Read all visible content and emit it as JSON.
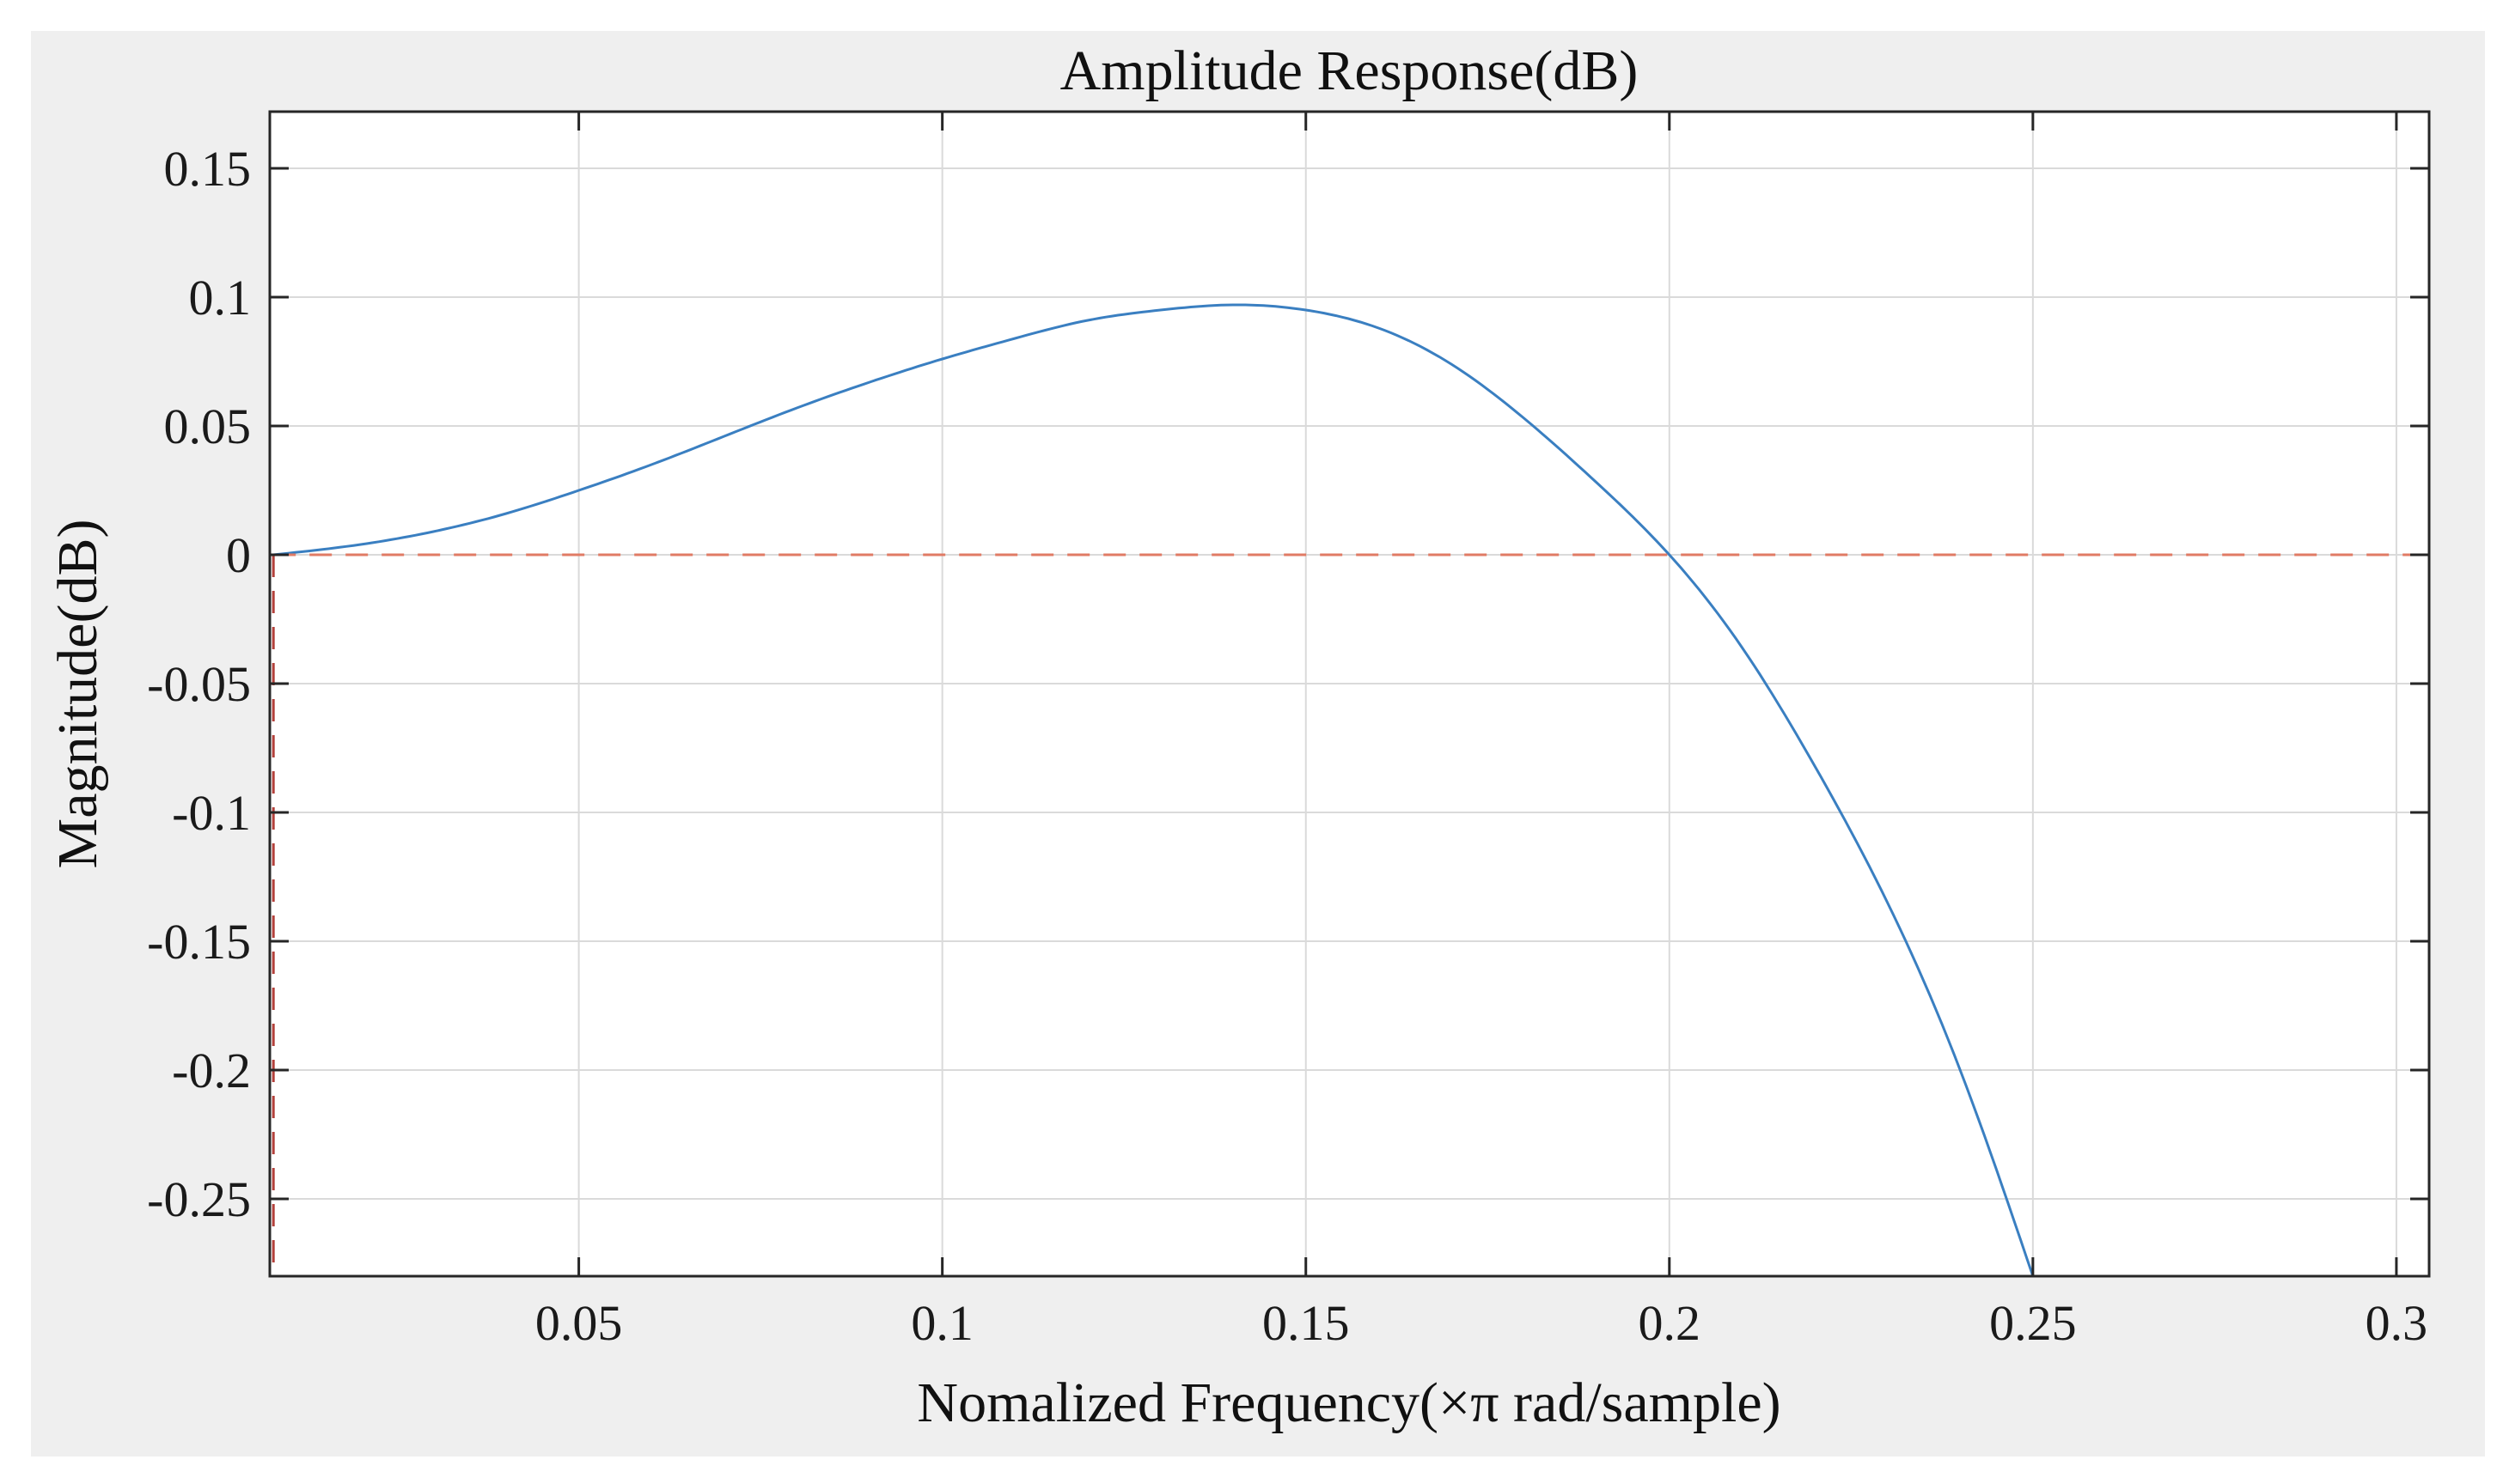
{
  "chart_data": {
    "type": "line",
    "title": "Amplitude Response(dB)",
    "xlabel": "Nomalized Frequency(×π rad/sample)",
    "ylabel": "Magnitude(dB)",
    "xlim": [
      0.0075,
      0.3045
    ],
    "ylim": [
      -0.28,
      0.172
    ],
    "xticks": [
      0.05,
      0.1,
      0.15,
      0.2,
      0.25,
      0.3
    ],
    "xtick_labels": [
      "0.05",
      "0.1",
      "0.15",
      "0.2",
      "0.25",
      "0.3"
    ],
    "yticks": [
      0.15,
      0.1,
      0.05,
      0,
      -0.05,
      -0.1,
      -0.15,
      -0.2,
      -0.25
    ],
    "ytick_labels": [
      "0.15",
      "0.1",
      "0.05",
      "0",
      "-0.05",
      "-0.1",
      "-0.15",
      "-0.2",
      "-0.25"
    ],
    "grid": true,
    "legend": "none",
    "series": [
      {
        "style": "solid",
        "color": "#3a7fc1",
        "x": [
          0.008,
          0.02,
          0.03,
          0.04,
          0.05,
          0.06,
          0.07,
          0.08,
          0.09,
          0.1,
          0.11,
          0.12,
          0.13,
          0.14,
          0.15,
          0.16,
          0.17,
          0.18,
          0.19,
          0.2,
          0.21,
          0.22,
          0.23,
          0.24,
          0.25
        ],
        "y": [
          0.0,
          0.004,
          0.009,
          0.016,
          0.025,
          0.035,
          0.046,
          0.057,
          0.067,
          0.076,
          0.084,
          0.091,
          0.095,
          0.097,
          0.095,
          0.088,
          0.074,
          0.053,
          0.028,
          0.0,
          -0.036,
          -0.082,
          -0.135,
          -0.2,
          -0.28
        ]
      },
      {
        "style": "dashed",
        "color": "#e07b65",
        "x": [
          0.008,
          0.304
        ],
        "y": [
          0,
          0
        ]
      },
      {
        "style": "dashed",
        "color": "#b2403a",
        "x": [
          0.008,
          0.008
        ],
        "y": [
          0,
          -0.28
        ]
      }
    ],
    "colors": {
      "figure_background": "#efefef",
      "plot_background": "#ffffff",
      "grid": "#dadada",
      "axes": "#262626"
    }
  }
}
